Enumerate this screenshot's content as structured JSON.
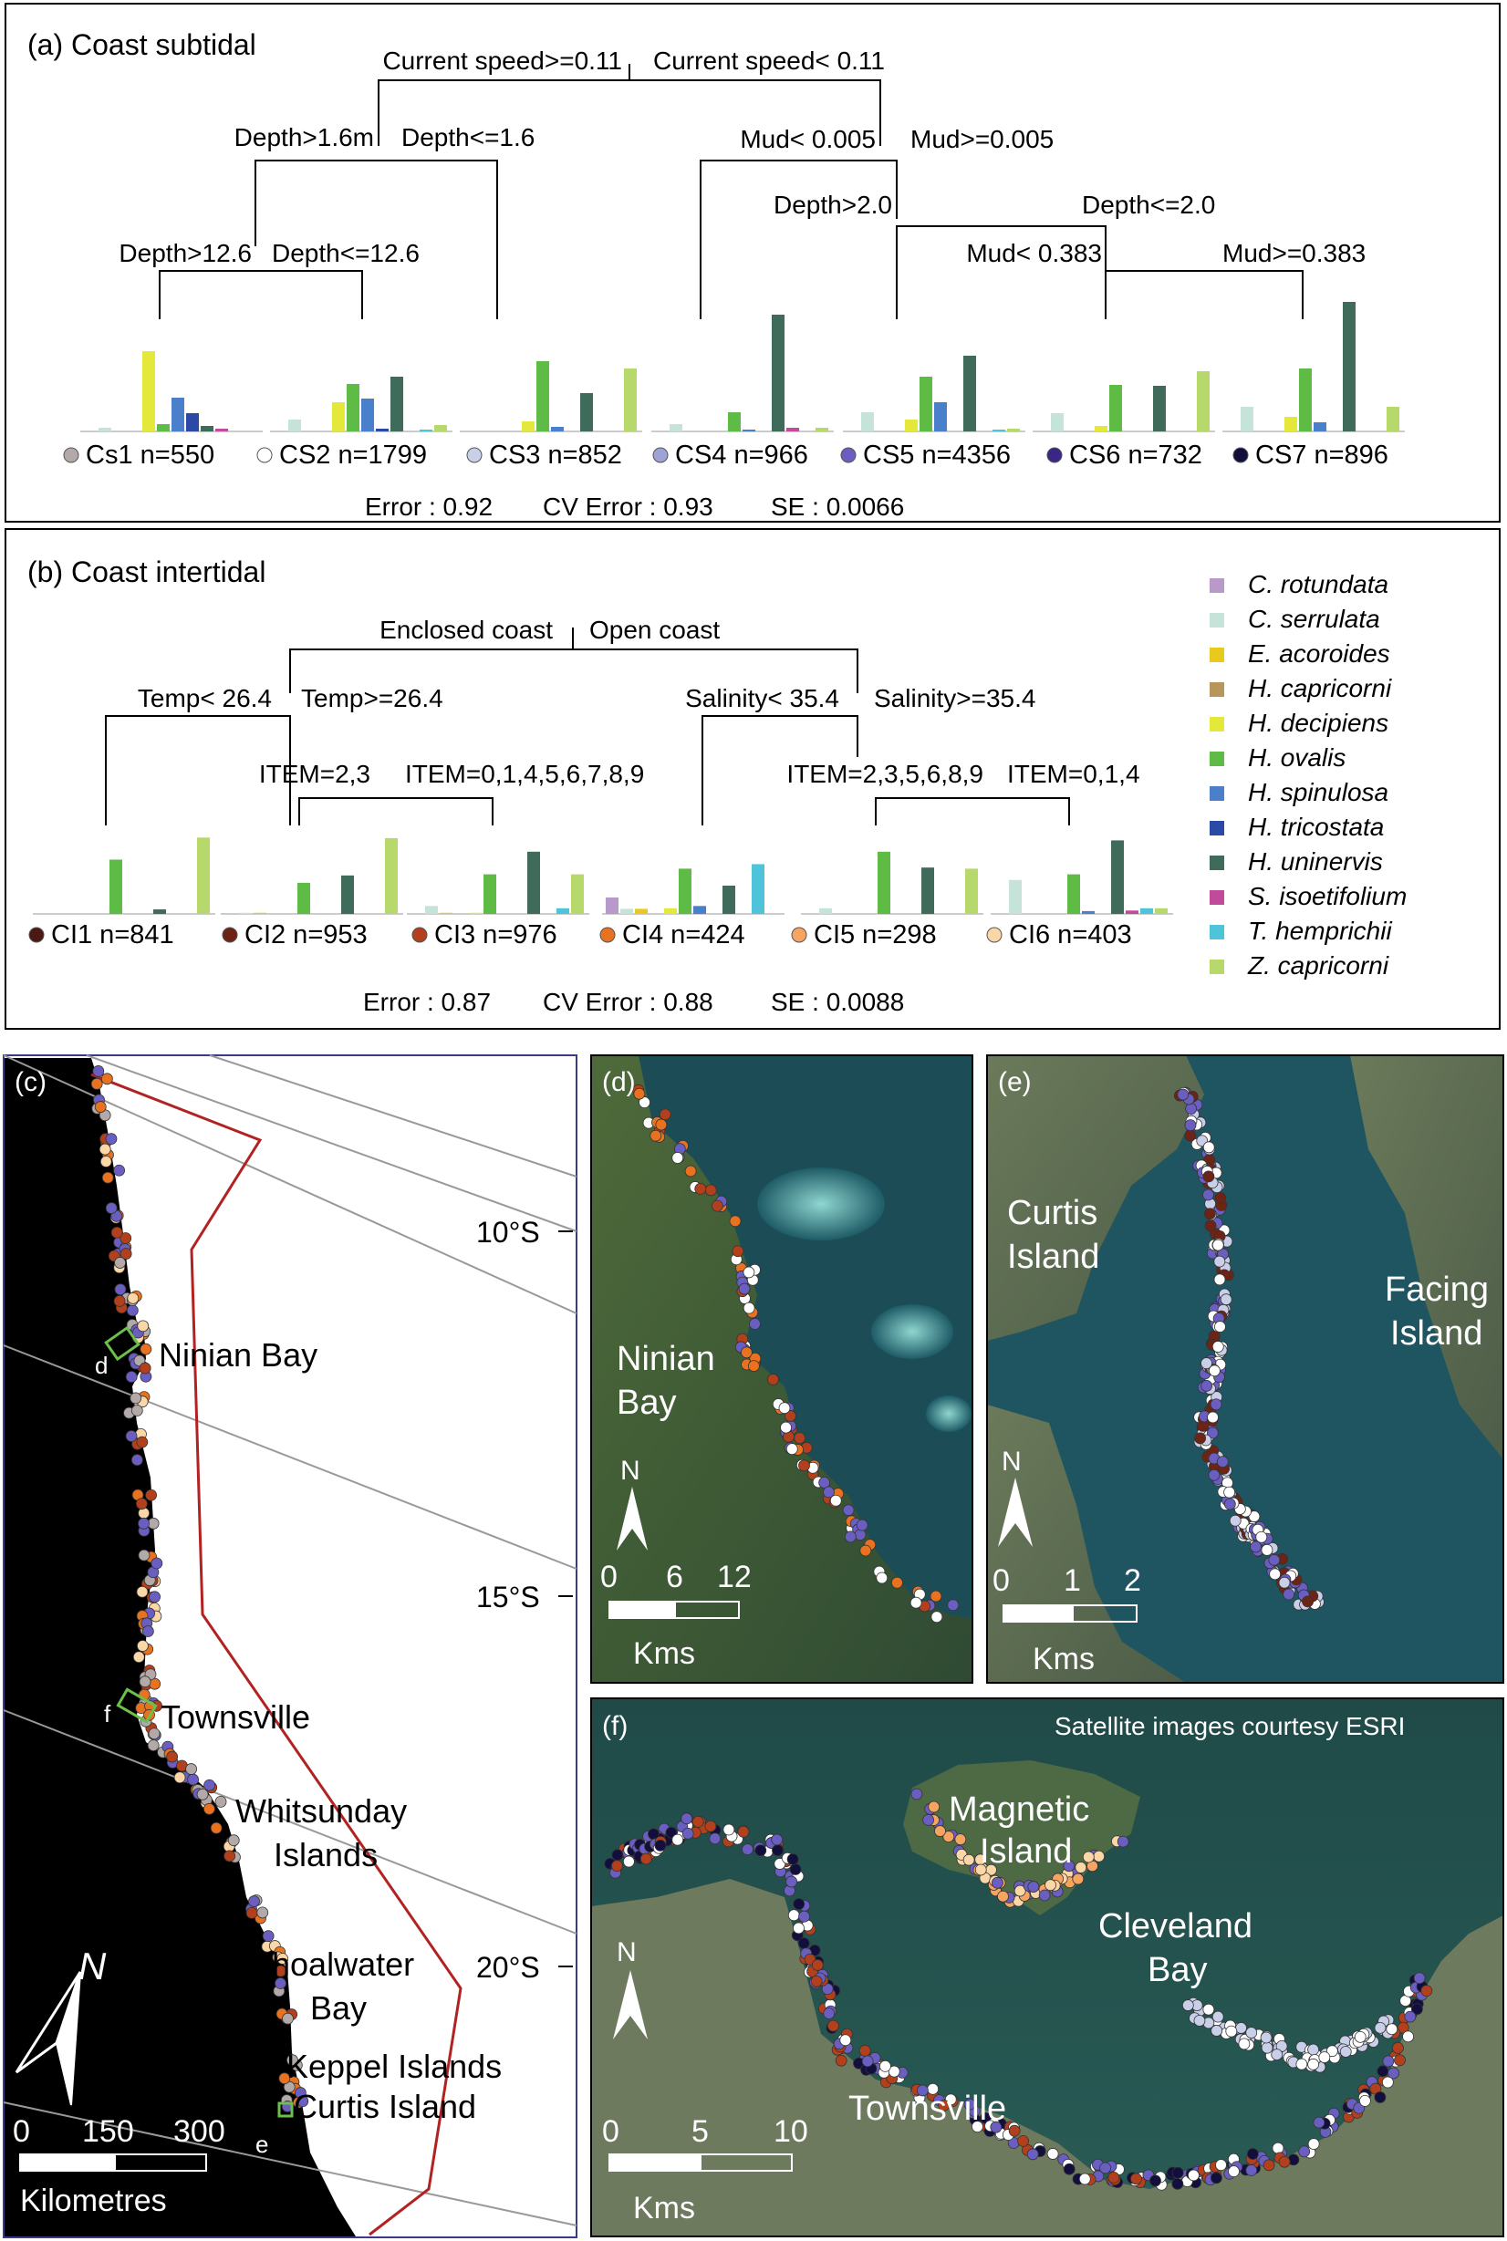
{
  "species": [
    {
      "name": "C. rotundata",
      "color": "#b79ac9"
    },
    {
      "name": "C. serrulata",
      "color": "#c5e3d8"
    },
    {
      "name": "E. acoroides",
      "color": "#e8c91c"
    },
    {
      "name": "H. capricorni",
      "color": "#b8955a"
    },
    {
      "name": "H. decipiens",
      "color": "#e3e83a"
    },
    {
      "name": "H. ovalis",
      "color": "#5dbb46"
    },
    {
      "name": "H. spinulosa",
      "color": "#4a7fcc"
    },
    {
      "name": "H. tricostata",
      "color": "#2b4aa8"
    },
    {
      "name": "H. uninervis",
      "color": "#3f6b5b"
    },
    {
      "name": "S. isoetifolium",
      "color": "#c24a9a"
    },
    {
      "name": "T. hemprichii",
      "color": "#4fc3d9"
    },
    {
      "name": "Z. capricorni",
      "color": "#b7d96b"
    }
  ],
  "panel_a": {
    "title": "(a) Coast subtidal",
    "splits": [
      {
        "left": "Current speed>=0.11",
        "right": "Current speed< 0.11"
      },
      {
        "left": "Depth>1.6m",
        "right": "Depth<=1.6"
      },
      {
        "left": "Depth>12.6",
        "right": "Depth<=12.6"
      },
      {
        "left": "Mud< 0.005",
        "right": "Mud>=0.005"
      },
      {
        "left": "Depth>2.0",
        "right": "Depth<=2.0"
      },
      {
        "left": "Mud< 0.383",
        "right": "Mud>=0.383"
      }
    ],
    "leaves": [
      {
        "label": "Cs1 n=550",
        "marker": "#b3a9a9",
        "values": [
          0,
          0.04,
          0,
          0,
          0.88,
          0.08,
          0.37,
          0.2,
          0.06,
          0.03,
          0,
          0
        ]
      },
      {
        "label": "CS2 n=1799",
        "marker": "#ffffff",
        "values": [
          0,
          0.13,
          0,
          0,
          0.32,
          0.52,
          0.36,
          0.03,
          0.6,
          0,
          0.02,
          0.07
        ]
      },
      {
        "label": "CS3 n=852",
        "marker": "#c9cfe8",
        "values": [
          0,
          0,
          0,
          0,
          0.11,
          0.77,
          0.05,
          0,
          0.42,
          0,
          0,
          0.69
        ]
      },
      {
        "label": "CS4 n=966",
        "marker": "#9fa2d6",
        "values": [
          0,
          0.08,
          0,
          0,
          0,
          0.21,
          0.02,
          0,
          1.28,
          0.04,
          0,
          0.04
        ]
      },
      {
        "label": "CS5 n=4356",
        "marker": "#6a5ec0",
        "values": [
          0,
          0.21,
          0,
          0,
          0.13,
          0.6,
          0.32,
          0,
          0.83,
          0,
          0.02,
          0.03
        ]
      },
      {
        "label": "CS6 n=732",
        "marker": "#3b2587",
        "values": [
          0,
          0.2,
          0,
          0,
          0.06,
          0.51,
          0,
          0,
          0.5,
          0,
          0,
          0.66
        ]
      },
      {
        "label": "CS7 n=896",
        "marker": "#120f3c",
        "values": [
          0,
          0.27,
          0,
          0,
          0.16,
          0.69,
          0.1,
          0,
          1.42,
          0,
          0,
          0.27
        ]
      }
    ],
    "stats": {
      "error": "Error :  0.92",
      "cv": "CV Error :  0.93",
      "se": "SE :  0.0066"
    }
  },
  "panel_b": {
    "title": "(b) Coast intertidal",
    "splits": [
      {
        "left": "Enclosed coast",
        "right": "Open coast"
      },
      {
        "left": "Temp< 26.4",
        "right": "Temp>=26.4"
      },
      {
        "left": "ITEM=2,3",
        "right": "ITEM=0,1,4,5,6,7,8,9"
      },
      {
        "left": "Salinity< 35.4",
        "right": "Salinity>=35.4"
      },
      {
        "left": "ITEM=2,3,5,6,8,9",
        "right": "ITEM=0,1,4"
      }
    ],
    "leaves": [
      {
        "label": "CI1 n=841",
        "marker": "#4a1a12",
        "values": [
          0,
          0,
          0,
          0,
          0,
          0.96,
          0,
          0,
          0.08,
          0,
          0,
          1.35
        ]
      },
      {
        "label": "CI2 n=953",
        "marker": "#6e2415",
        "values": [
          0,
          0.02,
          0.02,
          0,
          0,
          0.55,
          0,
          0,
          0.68,
          0,
          0,
          1.34
        ]
      },
      {
        "label": "CI3 n=976",
        "marker": "#b3401c",
        "values": [
          0,
          0.14,
          0.02,
          0,
          0.02,
          0.7,
          0,
          0,
          1.1,
          0,
          0.1,
          0.7
        ]
      },
      {
        "label": "CI4 n=424",
        "marker": "#e8721f",
        "values": [
          0.29,
          0.09,
          0.09,
          0,
          0.1,
          0.8,
          0.14,
          0,
          0.5,
          0,
          0.88,
          0
        ]
      },
      {
        "label": "CI5 n=298",
        "marker": "#f5a561",
        "values": [
          0,
          0.1,
          0,
          0,
          0,
          1.1,
          0,
          0,
          0.82,
          0,
          0,
          0.8
        ]
      },
      {
        "label": "CI6 n=403",
        "marker": "#fbd7a8",
        "values": [
          0,
          0.6,
          0,
          0,
          0,
          0.7,
          0.05,
          0,
          1.3,
          0.06,
          0.1,
          0.1
        ]
      }
    ],
    "stats": {
      "error": "Error :  0.87",
      "cv": "CV Error :  0.88",
      "se": "SE :  0.0088"
    }
  },
  "panel_c": {
    "title": "(c)",
    "latitudes": [
      "10°S",
      "15°S",
      "20°S"
    ],
    "places": [
      "Ninian Bay",
      "Townsville",
      "Whitsunday",
      "Islands",
      "Shoalwater",
      "Bay",
      "Keppel Islands",
      "Curtis Island"
    ],
    "insets": [
      "d",
      "f",
      "e"
    ],
    "north": "N",
    "scale_ticks": [
      "0",
      "150",
      "300"
    ],
    "scale_unit": "Kilometres"
  },
  "panel_d": {
    "title": "(d)",
    "places": [
      "Ninian",
      "Bay"
    ],
    "north": "N",
    "scale_ticks": [
      "0",
      "6",
      "12"
    ],
    "scale_unit": "Kms"
  },
  "panel_e": {
    "title": "(e)",
    "places": [
      "Curtis",
      "Island",
      "Facing",
      "Island"
    ],
    "north": "N",
    "scale_ticks": [
      "0",
      "1",
      "2"
    ],
    "scale_unit": "Kms"
  },
  "panel_f": {
    "title": "(f)",
    "credit": "Satellite images courtesy ESRI",
    "places": [
      "Magnetic",
      "Island",
      "Cleveland",
      "Bay",
      "Townsville"
    ],
    "north": "N",
    "scale_ticks": [
      "0",
      "5",
      "10"
    ],
    "scale_unit": "Kms"
  }
}
